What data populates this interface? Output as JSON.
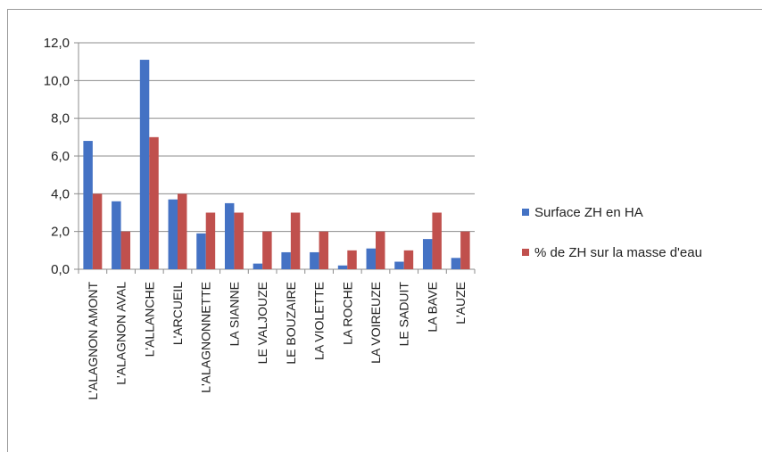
{
  "chart_data": {
    "type": "bar",
    "title": "",
    "xlabel": "",
    "ylabel": "",
    "categories": [
      "L'ALAGNON AMONT",
      "L'ALAGNON AVAL",
      "L'ALLANCHE",
      "L'ARCUEIL",
      "L'ALAGNONNETTE",
      "LA SIANNE",
      "LE VALJOUZE",
      "LE BOUZAIRE",
      "LA VIOLETTE",
      "LA ROCHE",
      "LA VOIREUZE",
      "LE SADUIT",
      "LA BAVE",
      "L'AUZE"
    ],
    "series": [
      {
        "name": "Surface ZH en HA",
        "color": "#4472c4",
        "values": [
          6.8,
          3.6,
          11.1,
          3.7,
          1.9,
          3.5,
          0.3,
          0.9,
          0.9,
          0.2,
          1.1,
          0.4,
          1.6,
          0.6
        ]
      },
      {
        "name": "% de ZH sur la masse d'eau",
        "color": "#c0504d",
        "values": [
          4.0,
          2.0,
          7.0,
          4.0,
          3.0,
          3.0,
          2.0,
          3.0,
          2.0,
          1.0,
          2.0,
          1.0,
          3.0,
          2.0
        ]
      }
    ],
    "ylim": [
      0,
      12
    ],
    "yticks": [
      "0,0",
      "2,0",
      "4,0",
      "6,0",
      "8,0",
      "10,0",
      "12,0"
    ],
    "grid": true,
    "legend": "right"
  }
}
